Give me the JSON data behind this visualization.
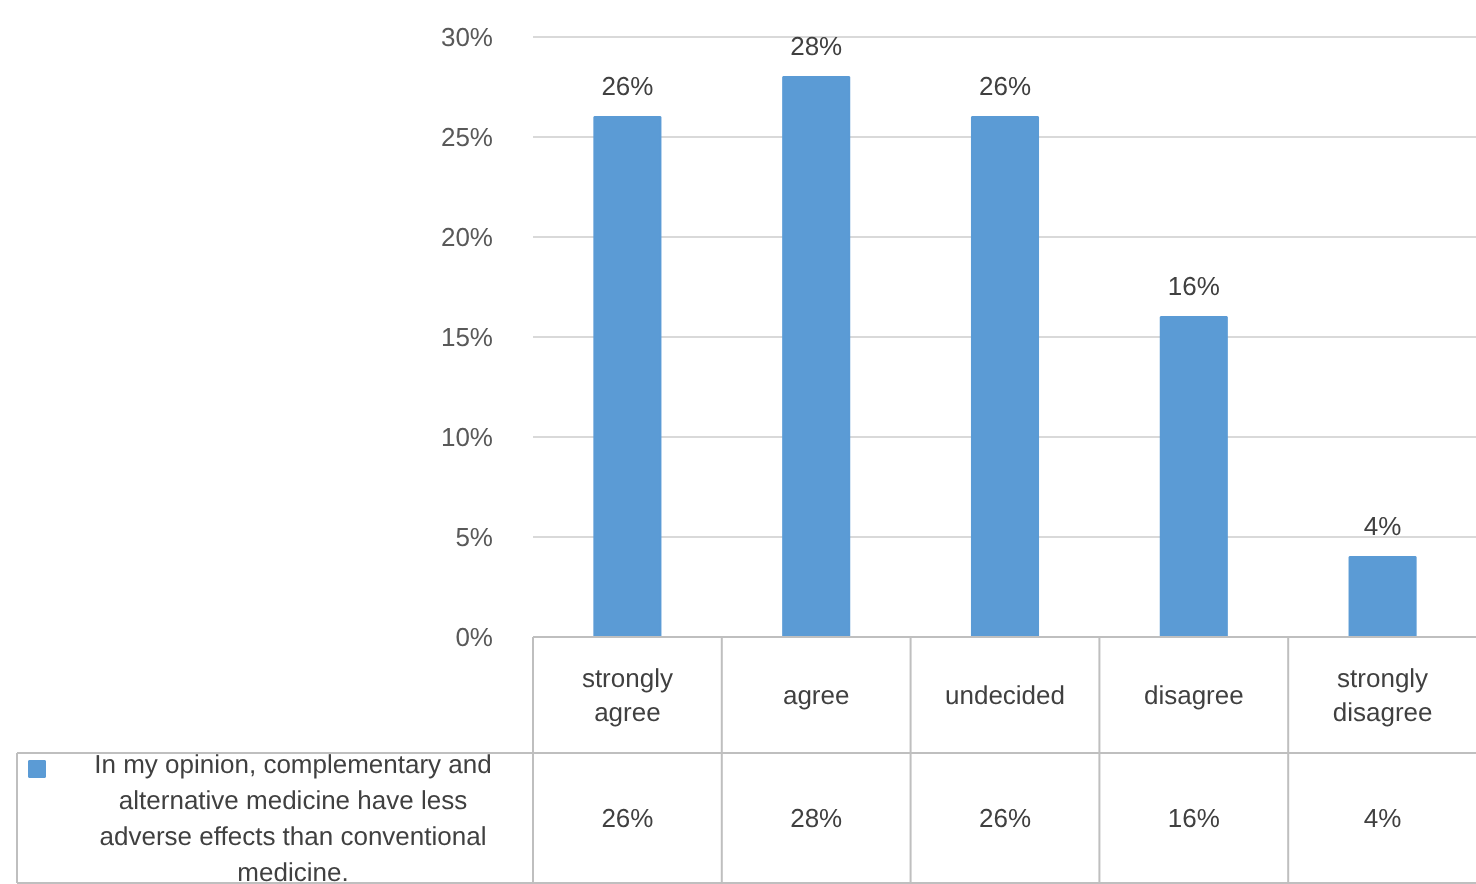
{
  "chart_data": {
    "type": "bar",
    "categories": [
      "strongly agree",
      "agree",
      "undecided",
      "disagree",
      "strongly disagree"
    ],
    "series": [
      {
        "name": "In my opinion, complementary and alternative medicine have less adverse effects than conventional medicine.",
        "color": "#5b9bd5",
        "values": [
          26,
          28,
          26,
          16,
          4
        ],
        "value_labels": [
          "26%",
          "28%",
          "26%",
          "16%",
          "4%"
        ]
      }
    ],
    "ylim": [
      0,
      30
    ],
    "yticks": [
      {
        "value": 0,
        "label": "0%"
      },
      {
        "value": 5,
        "label": "5%"
      },
      {
        "value": 10,
        "label": "10%"
      },
      {
        "value": 15,
        "label": "15%"
      },
      {
        "value": 20,
        "label": "20%"
      },
      {
        "value": 25,
        "label": "25%"
      },
      {
        "value": 30,
        "label": "30%"
      }
    ],
    "grid": "y",
    "legend": "bottom"
  }
}
